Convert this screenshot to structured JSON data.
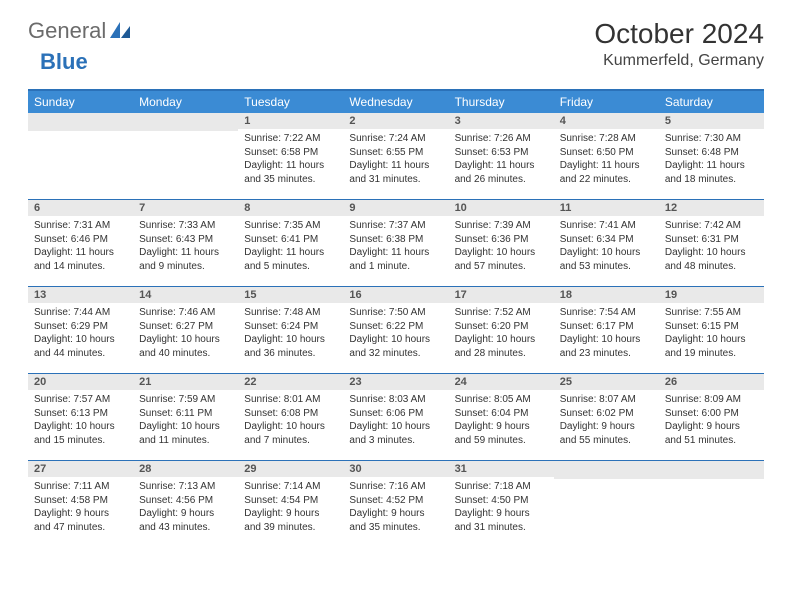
{
  "logo": {
    "text_grey": "General",
    "text_blue": "Blue"
  },
  "title": "October 2024",
  "location": "Kummerfeld, Germany",
  "colors": {
    "header_bg": "#3b8bd4",
    "header_border": "#2b71b8",
    "daynum_bg": "#e9e9e9",
    "logo_grey": "#6b6b6b",
    "logo_blue": "#2b71b8"
  },
  "day_names": [
    "Sunday",
    "Monday",
    "Tuesday",
    "Wednesday",
    "Thursday",
    "Friday",
    "Saturday"
  ],
  "weeks": [
    [
      null,
      null,
      {
        "n": "1",
        "sr": "Sunrise: 7:22 AM",
        "ss": "Sunset: 6:58 PM",
        "dl": "Daylight: 11 hours and 35 minutes."
      },
      {
        "n": "2",
        "sr": "Sunrise: 7:24 AM",
        "ss": "Sunset: 6:55 PM",
        "dl": "Daylight: 11 hours and 31 minutes."
      },
      {
        "n": "3",
        "sr": "Sunrise: 7:26 AM",
        "ss": "Sunset: 6:53 PM",
        "dl": "Daylight: 11 hours and 26 minutes."
      },
      {
        "n": "4",
        "sr": "Sunrise: 7:28 AM",
        "ss": "Sunset: 6:50 PM",
        "dl": "Daylight: 11 hours and 22 minutes."
      },
      {
        "n": "5",
        "sr": "Sunrise: 7:30 AM",
        "ss": "Sunset: 6:48 PM",
        "dl": "Daylight: 11 hours and 18 minutes."
      }
    ],
    [
      {
        "n": "6",
        "sr": "Sunrise: 7:31 AM",
        "ss": "Sunset: 6:46 PM",
        "dl": "Daylight: 11 hours and 14 minutes."
      },
      {
        "n": "7",
        "sr": "Sunrise: 7:33 AM",
        "ss": "Sunset: 6:43 PM",
        "dl": "Daylight: 11 hours and 9 minutes."
      },
      {
        "n": "8",
        "sr": "Sunrise: 7:35 AM",
        "ss": "Sunset: 6:41 PM",
        "dl": "Daylight: 11 hours and 5 minutes."
      },
      {
        "n": "9",
        "sr": "Sunrise: 7:37 AM",
        "ss": "Sunset: 6:38 PM",
        "dl": "Daylight: 11 hours and 1 minute."
      },
      {
        "n": "10",
        "sr": "Sunrise: 7:39 AM",
        "ss": "Sunset: 6:36 PM",
        "dl": "Daylight: 10 hours and 57 minutes."
      },
      {
        "n": "11",
        "sr": "Sunrise: 7:41 AM",
        "ss": "Sunset: 6:34 PM",
        "dl": "Daylight: 10 hours and 53 minutes."
      },
      {
        "n": "12",
        "sr": "Sunrise: 7:42 AM",
        "ss": "Sunset: 6:31 PM",
        "dl": "Daylight: 10 hours and 48 minutes."
      }
    ],
    [
      {
        "n": "13",
        "sr": "Sunrise: 7:44 AM",
        "ss": "Sunset: 6:29 PM",
        "dl": "Daylight: 10 hours and 44 minutes."
      },
      {
        "n": "14",
        "sr": "Sunrise: 7:46 AM",
        "ss": "Sunset: 6:27 PM",
        "dl": "Daylight: 10 hours and 40 minutes."
      },
      {
        "n": "15",
        "sr": "Sunrise: 7:48 AM",
        "ss": "Sunset: 6:24 PM",
        "dl": "Daylight: 10 hours and 36 minutes."
      },
      {
        "n": "16",
        "sr": "Sunrise: 7:50 AM",
        "ss": "Sunset: 6:22 PM",
        "dl": "Daylight: 10 hours and 32 minutes."
      },
      {
        "n": "17",
        "sr": "Sunrise: 7:52 AM",
        "ss": "Sunset: 6:20 PM",
        "dl": "Daylight: 10 hours and 28 minutes."
      },
      {
        "n": "18",
        "sr": "Sunrise: 7:54 AM",
        "ss": "Sunset: 6:17 PM",
        "dl": "Daylight: 10 hours and 23 minutes."
      },
      {
        "n": "19",
        "sr": "Sunrise: 7:55 AM",
        "ss": "Sunset: 6:15 PM",
        "dl": "Daylight: 10 hours and 19 minutes."
      }
    ],
    [
      {
        "n": "20",
        "sr": "Sunrise: 7:57 AM",
        "ss": "Sunset: 6:13 PM",
        "dl": "Daylight: 10 hours and 15 minutes."
      },
      {
        "n": "21",
        "sr": "Sunrise: 7:59 AM",
        "ss": "Sunset: 6:11 PM",
        "dl": "Daylight: 10 hours and 11 minutes."
      },
      {
        "n": "22",
        "sr": "Sunrise: 8:01 AM",
        "ss": "Sunset: 6:08 PM",
        "dl": "Daylight: 10 hours and 7 minutes."
      },
      {
        "n": "23",
        "sr": "Sunrise: 8:03 AM",
        "ss": "Sunset: 6:06 PM",
        "dl": "Daylight: 10 hours and 3 minutes."
      },
      {
        "n": "24",
        "sr": "Sunrise: 8:05 AM",
        "ss": "Sunset: 6:04 PM",
        "dl": "Daylight: 9 hours and 59 minutes."
      },
      {
        "n": "25",
        "sr": "Sunrise: 8:07 AM",
        "ss": "Sunset: 6:02 PM",
        "dl": "Daylight: 9 hours and 55 minutes."
      },
      {
        "n": "26",
        "sr": "Sunrise: 8:09 AM",
        "ss": "Sunset: 6:00 PM",
        "dl": "Daylight: 9 hours and 51 minutes."
      }
    ],
    [
      {
        "n": "27",
        "sr": "Sunrise: 7:11 AM",
        "ss": "Sunset: 4:58 PM",
        "dl": "Daylight: 9 hours and 47 minutes."
      },
      {
        "n": "28",
        "sr": "Sunrise: 7:13 AM",
        "ss": "Sunset: 4:56 PM",
        "dl": "Daylight: 9 hours and 43 minutes."
      },
      {
        "n": "29",
        "sr": "Sunrise: 7:14 AM",
        "ss": "Sunset: 4:54 PM",
        "dl": "Daylight: 9 hours and 39 minutes."
      },
      {
        "n": "30",
        "sr": "Sunrise: 7:16 AM",
        "ss": "Sunset: 4:52 PM",
        "dl": "Daylight: 9 hours and 35 minutes."
      },
      {
        "n": "31",
        "sr": "Sunrise: 7:18 AM",
        "ss": "Sunset: 4:50 PM",
        "dl": "Daylight: 9 hours and 31 minutes."
      },
      null,
      null
    ]
  ]
}
